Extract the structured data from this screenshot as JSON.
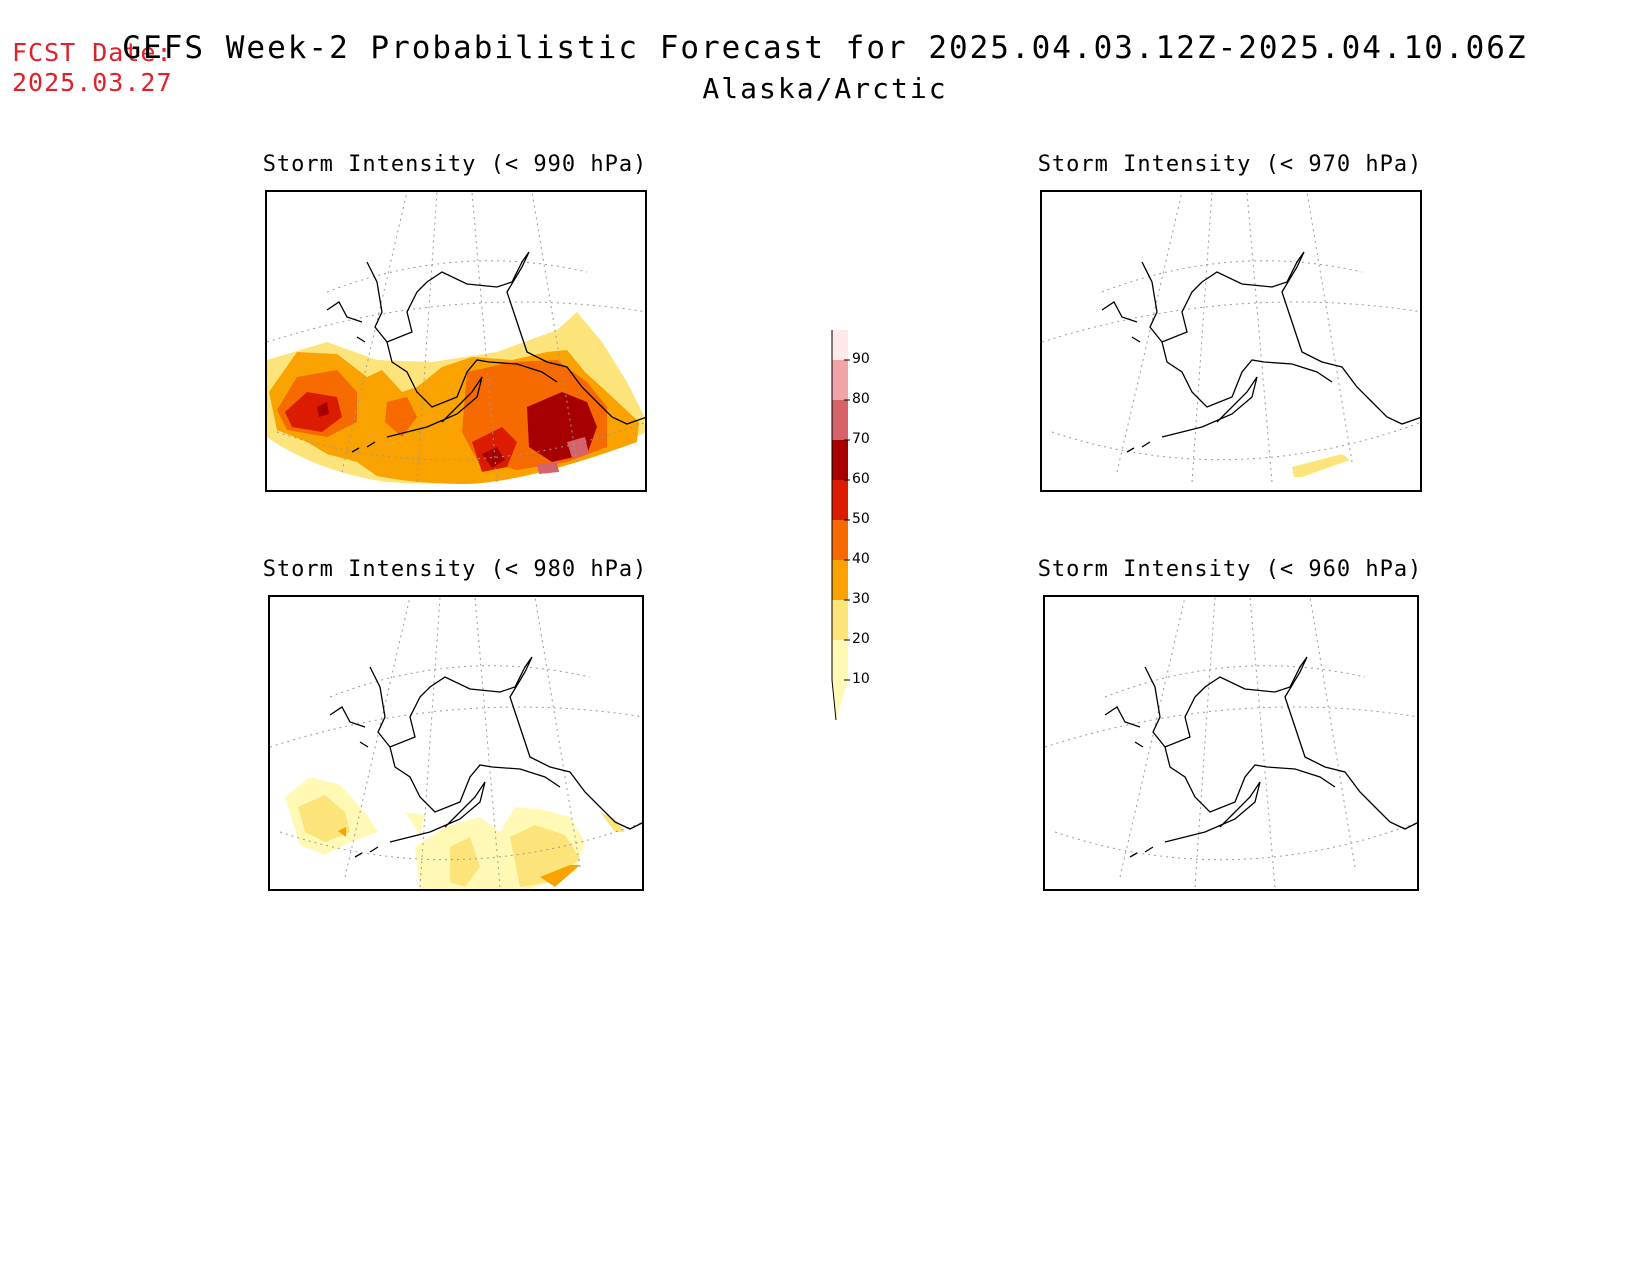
{
  "header": {
    "fcst_label": "FCST Date:",
    "fcst_date": "2025.03.27",
    "title": "GEFS Week-2 Probabilistic Forecast for 2025.04.03.12Z-2025.04.10.06Z",
    "subtitle": "Alaska/Arctic"
  },
  "panels": {
    "p990": {
      "title": "Storm Intensity (< 990 hPa)"
    },
    "p970": {
      "title": "Storm Intensity (< 970 hPa)"
    },
    "p980": {
      "title": "Storm Intensity (< 980 hPa)"
    },
    "p960": {
      "title": "Storm Intensity (< 960 hPa)"
    }
  },
  "colorbar": {
    "levels": [
      "10",
      "20",
      "30",
      "40",
      "50",
      "60",
      "70",
      "80",
      "90"
    ],
    "colors": [
      "#fff9b5",
      "#fde47a",
      "#f9a200",
      "#f76a00",
      "#dc1c00",
      "#a60000",
      "#d6636a",
      "#f0a4a8",
      "#fde8ea"
    ]
  }
}
